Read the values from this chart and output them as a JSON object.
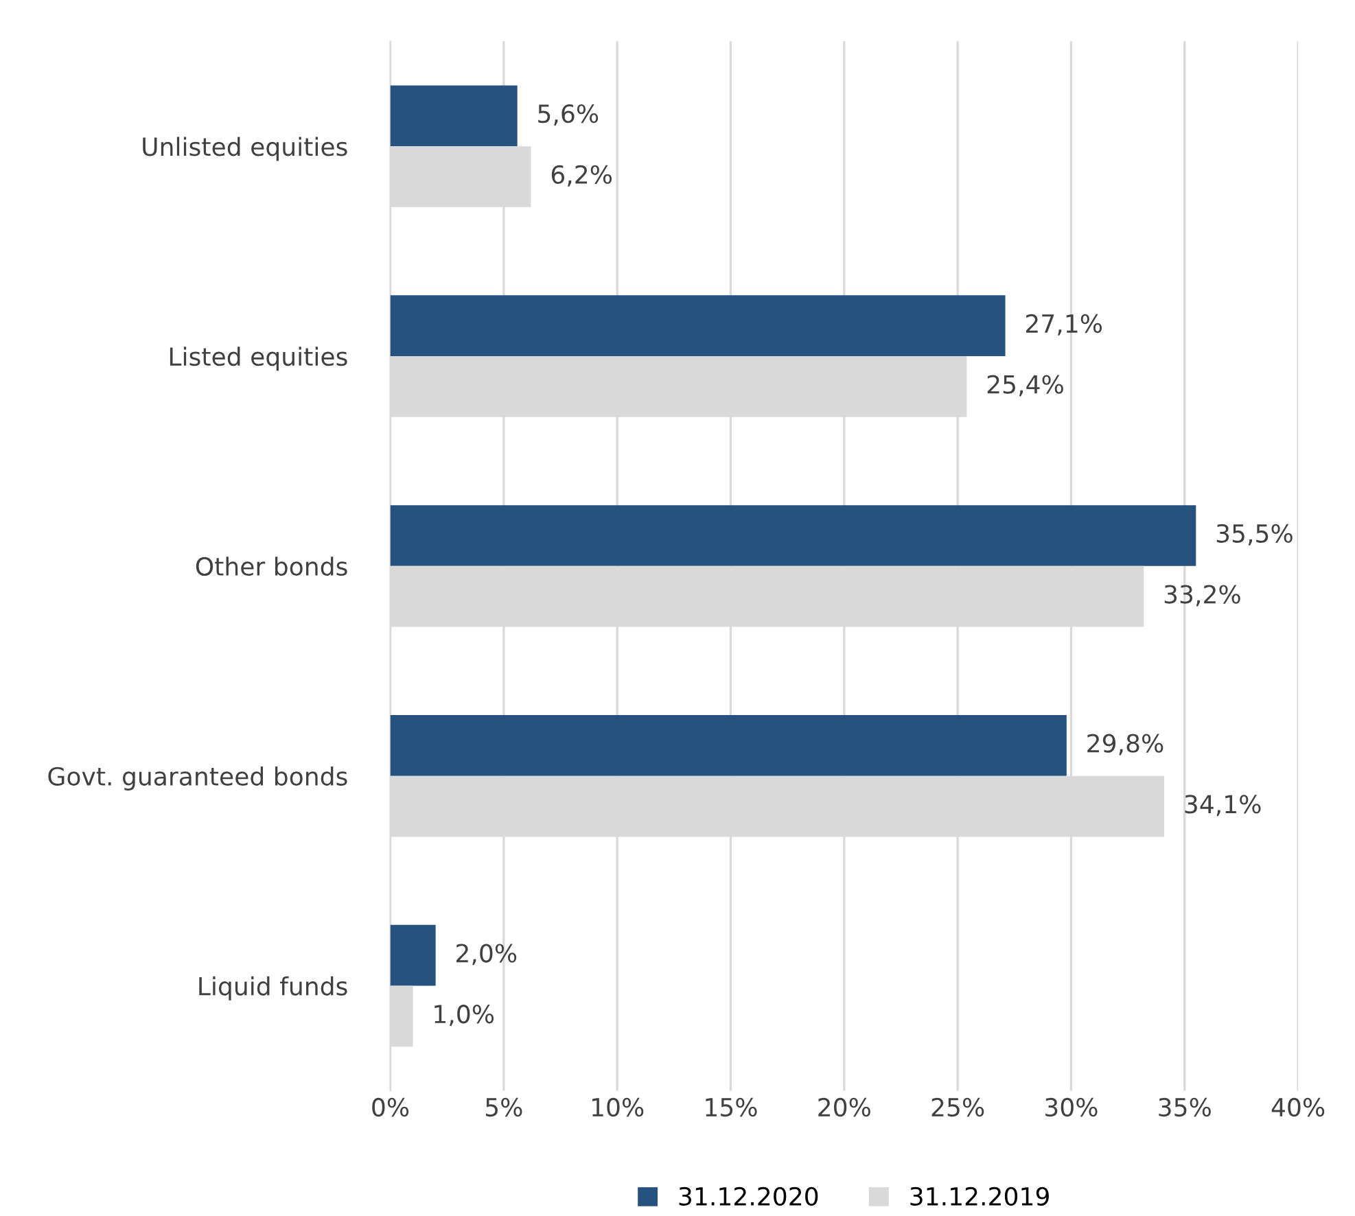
{
  "chart_data": {
    "type": "bar",
    "orientation": "horizontal",
    "categories": [
      "Unlisted equities",
      "Listed equities",
      "Other bonds",
      "Govt. guaranteed bonds",
      "Liquid funds"
    ],
    "series": [
      {
        "name": "31.12.2020",
        "color": "#25527f",
        "values": [
          5.6,
          27.1,
          35.5,
          29.8,
          2.0
        ],
        "value_labels": [
          "5,6%",
          "27,1%",
          "35,5%",
          "29,8%",
          "2,0%"
        ]
      },
      {
        "name": "31.12.2019",
        "color": "#d9d9d9",
        "values": [
          6.2,
          25.4,
          33.2,
          34.1,
          1.0
        ],
        "value_labels": [
          "6,2%",
          "25,4%",
          "33,2%",
          "34,1%",
          "1,0%"
        ]
      }
    ],
    "xlim": [
      0,
      40
    ],
    "xticks": [
      {
        "value": 0,
        "label": "0%"
      },
      {
        "value": 5,
        "label": "5%"
      },
      {
        "value": 10,
        "label": "10%"
      },
      {
        "value": 15,
        "label": "15%"
      },
      {
        "value": 20,
        "label": "20%"
      },
      {
        "value": 25,
        "label": "25%"
      },
      {
        "value": 30,
        "label": "30%"
      },
      {
        "value": 35,
        "label": "35%"
      },
      {
        "value": 40,
        "label": "40%"
      }
    ],
    "grid": "x",
    "legend": "bottom"
  }
}
